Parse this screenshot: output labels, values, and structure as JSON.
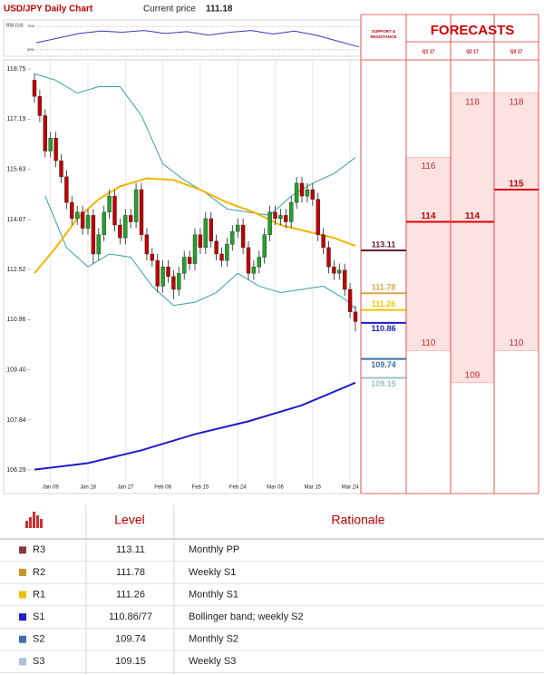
{
  "header": {
    "title": "USD/JPY Daily Chart",
    "price_label": "Current price",
    "price": 111.18
  },
  "chart_data": [
    {
      "type": "candlestick",
      "categories": [
        null,
        null,
        null,
        "Jan 09",
        null,
        null,
        null,
        null,
        null,
        null,
        "Jan 18",
        null,
        null,
        null,
        null,
        null,
        null,
        "Jan 27",
        null,
        null,
        null,
        null,
        null,
        null,
        "Feb 06",
        null,
        null,
        null,
        null,
        null,
        null,
        "Feb 15",
        null,
        null,
        null,
        null,
        null,
        null,
        "Feb 24",
        null,
        null,
        null,
        null,
        null,
        null,
        "Mar 06",
        null,
        null,
        null,
        null,
        null,
        null,
        "Mar 15",
        null,
        null,
        null,
        null,
        null,
        null,
        "Mar 24",
        null
      ],
      "open": [
        118.4,
        117.9,
        117.3,
        116.2,
        116.6,
        115.9,
        115.4,
        114.6,
        114.1,
        114.3,
        113.8,
        114.2,
        113.0,
        113.6,
        114.3,
        114.8,
        113.9,
        113.5,
        114.2,
        114.0,
        115.0,
        113.6,
        113.0,
        112.8,
        112.0,
        112.6,
        112.3,
        111.9,
        112.4,
        112.9,
        112.7,
        113.6,
        113.2,
        114.1,
        113.4,
        113.0,
        112.8,
        113.3,
        113.7,
        113.9,
        113.2,
        112.4,
        112.6,
        112.9,
        113.6,
        114.3,
        114.1,
        114.2,
        114.0,
        114.6,
        115.2,
        114.8,
        115.0,
        114.7,
        113.6,
        113.2,
        112.6,
        112.4,
        112.5,
        111.9,
        111.2
      ],
      "high": [
        118.6,
        118.1,
        117.5,
        116.8,
        116.8,
        116.1,
        115.6,
        114.8,
        114.5,
        114.5,
        114.4,
        114.4,
        113.8,
        114.5,
        115.0,
        115.0,
        114.1,
        114.4,
        114.4,
        115.2,
        115.2,
        113.8,
        113.2,
        113.0,
        112.8,
        112.8,
        112.5,
        112.6,
        113.1,
        113.1,
        113.8,
        113.8,
        114.3,
        114.3,
        113.6,
        113.2,
        113.5,
        113.9,
        114.1,
        114.1,
        113.4,
        112.8,
        113.1,
        113.8,
        114.5,
        114.5,
        114.4,
        114.4,
        114.8,
        115.4,
        115.4,
        115.2,
        115.2,
        114.9,
        113.8,
        113.4,
        112.8,
        112.7,
        112.7,
        112.1,
        111.4
      ],
      "low": [
        117.7,
        117.1,
        116.0,
        116.0,
        115.7,
        115.2,
        114.4,
        113.9,
        113.9,
        113.6,
        113.6,
        112.7,
        112.8,
        113.4,
        114.1,
        113.7,
        113.3,
        113.3,
        113.8,
        113.8,
        113.4,
        112.8,
        112.6,
        111.8,
        111.8,
        112.1,
        111.6,
        111.7,
        112.2,
        112.5,
        112.5,
        113.0,
        113.0,
        113.2,
        112.8,
        112.6,
        112.6,
        113.1,
        113.5,
        113.0,
        112.2,
        112.2,
        112.4,
        112.7,
        113.4,
        113.9,
        113.9,
        113.8,
        113.8,
        114.4,
        114.6,
        114.6,
        114.5,
        113.4,
        113.0,
        112.4,
        112.2,
        112.2,
        111.7,
        111.0,
        110.6
      ],
      "close": [
        117.9,
        117.3,
        116.2,
        116.6,
        115.9,
        115.4,
        114.6,
        114.1,
        114.3,
        113.8,
        114.2,
        113.0,
        113.6,
        114.3,
        114.8,
        113.9,
        113.5,
        114.2,
        114.0,
        115.0,
        113.6,
        113.0,
        112.8,
        112.0,
        112.6,
        112.3,
        111.9,
        112.4,
        112.9,
        112.7,
        113.6,
        113.2,
        114.1,
        113.4,
        113.0,
        112.8,
        113.3,
        113.7,
        113.9,
        113.2,
        112.4,
        112.6,
        112.9,
        113.6,
        114.3,
        114.1,
        114.2,
        114.0,
        114.6,
        115.2,
        114.8,
        115.0,
        114.7,
        113.6,
        113.2,
        112.6,
        112.4,
        112.5,
        111.9,
        111.2,
        110.9
      ],
      "up_color": "#22a02a",
      "down_color": "#c00000",
      "series": [
        {
          "color": "#35a0a8",
          "x": [
            0,
            4,
            8,
            12,
            16,
            20,
            24,
            28,
            32,
            36,
            40,
            44,
            48,
            52,
            56,
            60
          ],
          "values": [
            118.6,
            118.4,
            118.0,
            118.2,
            118.2,
            117.3,
            115.8,
            115.3,
            114.9,
            114.4,
            114.3,
            114.2,
            114.8,
            115.2,
            115.5,
            116.0
          ]
        },
        {
          "color": "#35a0a8",
          "x": [
            2,
            6,
            10,
            14,
            18,
            22,
            26,
            30,
            34,
            38,
            42,
            46,
            50,
            54,
            58,
            60
          ],
          "values": [
            114.8,
            113.2,
            112.6,
            113.0,
            112.9,
            112.0,
            111.4,
            111.5,
            111.8,
            112.4,
            112.0,
            111.8,
            111.9,
            112.0,
            111.6,
            111.3
          ]
        },
        {
          "color": "#f5b400",
          "x": [
            0,
            4,
            8,
            12,
            16,
            21,
            26,
            31,
            36,
            41,
            46,
            51,
            56,
            60
          ],
          "values": [
            112.4,
            113.2,
            114.1,
            114.7,
            115.1,
            115.35,
            115.3,
            115.0,
            114.6,
            114.3,
            113.9,
            113.7,
            113.5,
            113.25
          ]
        },
        {
          "color": "#1c1cc8",
          "x": [
            0,
            10,
            20,
            30,
            40,
            50,
            60
          ],
          "values": [
            106.3,
            106.5,
            106.9,
            107.4,
            107.8,
            108.3,
            109.0
          ]
        }
      ],
      "ylim": [
        105.95,
        118.92
      ],
      "yticks": [
        118.75,
        117.19,
        115.63,
        114.07,
        112.52,
        110.96,
        {
          "value": 109.4,
          "label": "109.40"
        },
        107.84,
        106.29
      ],
      "grid": true,
      "levels_title": "SUPPORT & RESISTANCE",
      "levels": [
        {
          "value": 113.11,
          "color": "#6b1a2a"
        },
        {
          "value": 111.78,
          "color": "#d9a84a"
        },
        {
          "value": 111.26,
          "color": "#f2c200"
        },
        {
          "value": 110.86,
          "color": "#1c1cc8"
        },
        {
          "value": 109.74,
          "color": "#3a70a8"
        },
        {
          "value": 109.15,
          "color": "#9cc0c8"
        }
      ]
    },
    {
      "type": "line",
      "title": "RSI (14)",
      "x": [
        0,
        4,
        8,
        12,
        16,
        20,
        24,
        28,
        32,
        36,
        40,
        44,
        48,
        52,
        56,
        60
      ],
      "xlim": [
        0,
        60
      ],
      "values": [
        42,
        50,
        58,
        62,
        60,
        63,
        58,
        61,
        55,
        60,
        63,
        57,
        62,
        55,
        45,
        35
      ],
      "color": "#3a3ab8",
      "ylim": [
        19,
        81
      ],
      "yticks": [
        {
          "value": 70,
          "label": "70%"
        },
        {
          "value": 30,
          "label": "30%"
        }
      ]
    },
    {
      "type": "range",
      "title": "FORECASTS",
      "ylim": [
        105.95,
        118.92
      ],
      "color": "#e00000",
      "periods": [
        {
          "name": "Q1 17",
          "high": 116,
          "low": 110,
          "forecast": 114
        },
        {
          "name": "Q2 17",
          "high": 118,
          "low": 109,
          "forecast": 114
        },
        {
          "name": "Q3 17",
          "high": 118,
          "low": 110,
          "forecast": 115
        }
      ]
    }
  ],
  "table": {
    "header": [
      "Level",
      "Rationale"
    ],
    "rows": [
      {
        "label": "R3",
        "level": "113.11",
        "rationale": "Monthly PP",
        "color": "#8b3a3a"
      },
      {
        "label": "R2",
        "level": "111.78",
        "rationale": "Weekly S1",
        "color": "#c8962a"
      },
      {
        "label": "R1",
        "level": "111.26",
        "rationale": "Monthly S1",
        "color": "#f0c000"
      },
      {
        "label": "S1",
        "level": "110.86/77",
        "rationale": "Bollinger band; weekly S2",
        "color": "#1f1fcc"
      },
      {
        "label": "S2",
        "level": "109.74",
        "rationale": "Monthly S2",
        "color": "#3f6fa8"
      },
      {
        "label": "S3",
        "level": "109.15",
        "rationale": "Weekly S3",
        "color": "#a8c0dc"
      }
    ]
  }
}
